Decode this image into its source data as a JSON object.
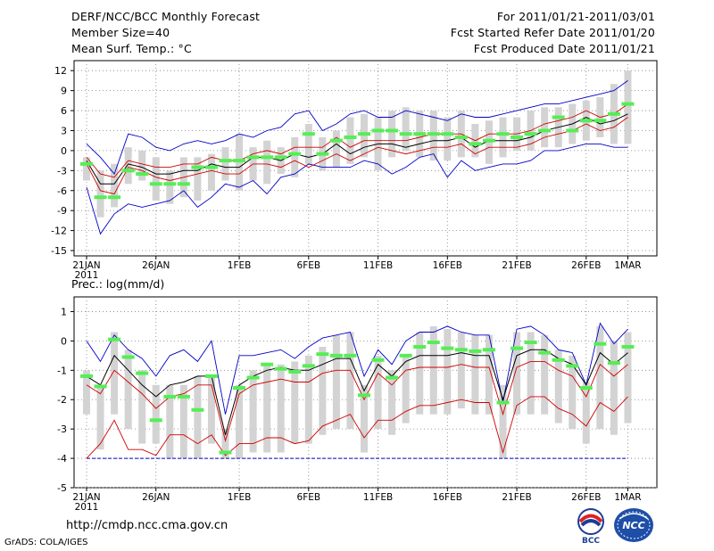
{
  "header": {
    "title": "DERF/NCC/BCC Monthly Forecast",
    "member_size": "Member Size=40",
    "variable": "Mean Surf. Temp.: °C",
    "period": "For 2011/01/21-2011/03/01",
    "fcst_started": "Fcst Started Refer Date 2011/01/20",
    "fcst_produced": "Fcst Produced Date 2011/01/21"
  },
  "footer": {
    "url": "http://cmdp.ncc.cma.gov.cn",
    "grads": "GrADS: COLA/IGES",
    "logo_bcc": "BCC",
    "logo_ncc": "NCC"
  },
  "colors": {
    "box": "#d3d3d3",
    "mean": "#000000",
    "inner_band": "#d00000",
    "outer_band": "#0000c8",
    "marker": "#55ee55",
    "grid": "#808080",
    "dashed_floor": "#0000c8"
  },
  "chart_data": [
    {
      "type": "line",
      "title": "Mean Surf. Temp.: °C",
      "x_ticks": [
        {
          "day": 0,
          "label": "21JAN",
          "sublabel": "2011"
        },
        {
          "day": 5,
          "label": "26JAN"
        },
        {
          "day": 11,
          "label": "1FEB"
        },
        {
          "day": 16,
          "label": "6FEB"
        },
        {
          "day": 21,
          "label": "11FEB"
        },
        {
          "day": 26,
          "label": "16FEB"
        },
        {
          "day": 31,
          "label": "21FEB"
        },
        {
          "day": 36,
          "label": "26FEB"
        },
        {
          "day": 39,
          "label": "1MAR"
        }
      ],
      "ylim": [
        -15.8,
        13.5
      ],
      "yticks": [
        -15,
        -12,
        -9,
        -6,
        -3,
        0,
        3,
        6,
        9,
        12
      ],
      "ytick_labels": [
        "-15",
        "-12",
        "-9",
        "-6",
        "-3",
        "0",
        "3",
        "6",
        "9",
        "12"
      ],
      "grid": true,
      "series": [
        {
          "name": "ensemble-box-max",
          "values": [
            -1,
            -3,
            -2,
            0.5,
            0,
            -1,
            -3,
            -1,
            -1,
            -0.5,
            0.5,
            2.5,
            0.5,
            1.5,
            0.5,
            2,
            4,
            2,
            3,
            5,
            5.5,
            5,
            6,
            6.5,
            6,
            6,
            5,
            6,
            4,
            4.5,
            5,
            5,
            6,
            6.5,
            6.5,
            7,
            7.5,
            8,
            10,
            12
          ]
        },
        {
          "name": "ensemble-box-min",
          "values": [
            -4.5,
            -10,
            -8.5,
            -5,
            -4.5,
            -7.5,
            -8,
            -7,
            -7.5,
            -6,
            -4.5,
            -6,
            -4.5,
            -5,
            -3.5,
            -4,
            -2,
            -3,
            -2.5,
            -2,
            -1,
            -3,
            -1,
            0,
            -1,
            -1.5,
            -1.5,
            -1,
            -1,
            -2,
            -1,
            0,
            0,
            0.5,
            0.5,
            1,
            1.5,
            2,
            1,
            1
          ]
        },
        {
          "name": "ensemble-mean",
          "values": [
            -1.5,
            -5,
            -5,
            -2,
            -2.5,
            -3.5,
            -3.5,
            -3,
            -3,
            -2,
            -2.5,
            -2.5,
            -1,
            -1,
            -1.5,
            -0.5,
            -1,
            -0.5,
            1,
            -0.5,
            0.5,
            1,
            1,
            0.5,
            1,
            1.5,
            1.5,
            2,
            0.5,
            1.5,
            1.5,
            1.5,
            2,
            3,
            3.5,
            4,
            5,
            4,
            4.5,
            5.5
          ]
        },
        {
          "name": "upper-inner",
          "values": [
            -1,
            -3.5,
            -4,
            -1.5,
            -2,
            -2.5,
            -2.5,
            -2,
            -2,
            -1,
            -1.5,
            -1.5,
            -0.5,
            0,
            -0.5,
            0.5,
            0.5,
            0.5,
            2,
            0.5,
            1.5,
            1.5,
            1.5,
            1.5,
            2,
            2.5,
            2.5,
            2.5,
            1.5,
            2.5,
            2.5,
            2.5,
            3,
            4,
            4.5,
            5,
            6,
            5,
            5.5,
            7
          ]
        },
        {
          "name": "lower-inner",
          "values": [
            -2,
            -6,
            -6.5,
            -2.5,
            -3,
            -4,
            -4.5,
            -4,
            -3.5,
            -3,
            -3.5,
            -3.5,
            -2,
            -2,
            -2.5,
            -1.5,
            -2.5,
            -1.5,
            -0.5,
            -1.5,
            -0.5,
            0.5,
            0,
            -0.5,
            0,
            0.5,
            0.5,
            1,
            -0.5,
            0.5,
            0.5,
            0.5,
            1,
            2,
            2.5,
            3,
            4,
            3,
            3.5,
            5
          ]
        },
        {
          "name": "upper-outer",
          "values": [
            1,
            -1,
            -3.5,
            2.5,
            2,
            0.5,
            0,
            1,
            1.5,
            1,
            1.5,
            2.5,
            2,
            3,
            3.5,
            5.5,
            6,
            3,
            4,
            5.5,
            6,
            5,
            5,
            6,
            5.5,
            5,
            4.5,
            5.5,
            5,
            5,
            5.5,
            6,
            6.5,
            7,
            7,
            7.5,
            8,
            8.5,
            9,
            10.5
          ]
        },
        {
          "name": "lower-outer",
          "values": [
            -5.5,
            -12.5,
            -9.5,
            -8,
            -8.5,
            -8,
            -7.5,
            -6,
            -8.5,
            -7,
            -5,
            -5.5,
            -4.5,
            -6.5,
            -4,
            -3.5,
            -2,
            -2.5,
            -2.5,
            -2.5,
            -1.5,
            -2,
            -3.5,
            -2.5,
            -1,
            -0.5,
            -4,
            -1.5,
            -3,
            -2.5,
            -2,
            -2,
            -1.5,
            0,
            0,
            0.5,
            1,
            1,
            0.5,
            0.5
          ]
        },
        {
          "name": "marker",
          "values": [
            -2,
            -7,
            -7,
            -3,
            -3.5,
            -5,
            -5,
            -5,
            -2.5,
            -2.5,
            -1.5,
            -1.5,
            -1,
            -1,
            -1,
            -0.5,
            2.5,
            -0.5,
            1.5,
            2,
            2.5,
            3,
            3,
            2.5,
            2.5,
            2.5,
            2.5,
            2,
            1,
            1.5,
            2.5,
            2,
            2.5,
            3,
            5,
            3,
            4.5,
            4.5,
            5.5,
            7
          ]
        }
      ]
    },
    {
      "type": "line",
      "title": "Prec.: log(mm/d)",
      "x_ticks": [
        {
          "day": 0,
          "label": "21JAN",
          "sublabel": "2011"
        },
        {
          "day": 5,
          "label": "26JAN"
        },
        {
          "day": 11,
          "label": "1FEB"
        },
        {
          "day": 16,
          "label": "6FEB"
        },
        {
          "day": 21,
          "label": "11FEB"
        },
        {
          "day": 26,
          "label": "16FEB"
        },
        {
          "day": 31,
          "label": "21FEB"
        },
        {
          "day": 36,
          "label": "26FEB"
        },
        {
          "day": 39,
          "label": "1MAR"
        }
      ],
      "ylim": [
        -5,
        1.5
      ],
      "yticks": [
        -5,
        -4,
        -3,
        -2,
        -1,
        0,
        1
      ],
      "ytick_labels": [
        "-5",
        "-4",
        "-3",
        "-2",
        "-1",
        "0",
        "1"
      ],
      "grid": true,
      "floor_value": -4,
      "series": [
        {
          "name": "ensemble-box-max",
          "values": [
            -1,
            -1.5,
            0.3,
            -0.3,
            -1,
            -1.5,
            -1.5,
            -1.5,
            -1.2,
            -1.2,
            -3,
            -1.5,
            -1,
            -0.8,
            -0.8,
            -0.7,
            -0.5,
            -0.2,
            0.2,
            0.3,
            -1.5,
            -0.5,
            -1,
            -0.5,
            0.3,
            0.5,
            0.4,
            0.3,
            0.2,
            0.2,
            -1.5,
            0.3,
            0.3,
            0.2,
            -0.3,
            -0.5,
            -1.4,
            0.5,
            0,
            0.3
          ]
        },
        {
          "name": "ensemble-box-min",
          "values": [
            -2.5,
            -3.7,
            -2.5,
            -3,
            -3.5,
            -3.5,
            -4,
            -4,
            -4,
            -3.5,
            -4,
            -4,
            -3.8,
            -3.8,
            -3.8,
            -3.5,
            -3.5,
            -3.2,
            -3,
            -3,
            -3.8,
            -3,
            -3.2,
            -2.8,
            -2.5,
            -2.5,
            -2.5,
            -2.3,
            -2.5,
            -2.5,
            -4,
            -2.5,
            -2.5,
            -2.5,
            -2.8,
            -3,
            -3.5,
            -3,
            -3.2,
            -2.8
          ]
        },
        {
          "name": "ensemble-mean",
          "values": [
            -1.2,
            -1.5,
            -0.5,
            -1,
            -1.5,
            -1.9,
            -1.5,
            -1.4,
            -1.2,
            -1.2,
            -3.2,
            -1.5,
            -1.2,
            -1,
            -0.9,
            -1,
            -1,
            -0.8,
            -0.6,
            -0.6,
            -1.7,
            -0.8,
            -1.2,
            -0.7,
            -0.5,
            -0.5,
            -0.5,
            -0.4,
            -0.5,
            -0.5,
            -2,
            -0.5,
            -0.3,
            -0.3,
            -0.6,
            -0.8,
            -1.5,
            -0.4,
            -0.8,
            -0.4
          ]
        },
        {
          "name": "upper-inner",
          "values": [
            -1.5,
            -1.8,
            -1,
            -1.4,
            -1.8,
            -2.3,
            -1.9,
            -1.8,
            -1.5,
            -1.5,
            -3.4,
            -1.8,
            -1.5,
            -1.4,
            -1.3,
            -1.4,
            -1.4,
            -1.1,
            -1,
            -1,
            -2,
            -1.1,
            -1.5,
            -1,
            -0.9,
            -0.9,
            -0.9,
            -0.8,
            -0.9,
            -0.9,
            -2.5,
            -0.9,
            -0.7,
            -0.7,
            -1,
            -1.2,
            -1.9,
            -0.8,
            -1.2,
            -0.8
          ]
        },
        {
          "name": "lower-inner",
          "values": [
            -4,
            -3.5,
            -2.7,
            -3.7,
            -3.7,
            -3.9,
            -3.2,
            -3.2,
            -3.5,
            -3.2,
            -3.9,
            -3.5,
            -3.5,
            -3.3,
            -3.3,
            -3.5,
            -3.4,
            -2.9,
            -2.7,
            -2.5,
            -3.3,
            -2.7,
            -2.7,
            -2.4,
            -2.2,
            -2.2,
            -2.1,
            -2,
            -2.1,
            -2.1,
            -3.8,
            -2.2,
            -1.9,
            -1.9,
            -2.3,
            -2.5,
            -2.9,
            -2.1,
            -2.4,
            -1.9
          ]
        },
        {
          "name": "upper-outer",
          "values": [
            0,
            -0.7,
            0.2,
            -0.3,
            -0.6,
            -1.2,
            -0.5,
            -0.3,
            -0.7,
            0,
            -2.5,
            -0.5,
            -0.5,
            -0.4,
            -0.3,
            -0.6,
            -0.2,
            0.1,
            0.2,
            0.3,
            -1.2,
            -0.3,
            -0.8,
            0,
            0.3,
            0.3,
            0.5,
            0.3,
            0.2,
            0.2,
            -2.1,
            0.4,
            0.5,
            0.2,
            -0.3,
            -0.4,
            -1.5,
            0.6,
            -0.1,
            0.4
          ]
        },
        {
          "name": "marker",
          "values": [
            -1.2,
            -1.55,
            0.05,
            -0.55,
            -1.1,
            -2.7,
            -1.9,
            -1.9,
            -2.35,
            -1.2,
            -3.8,
            -1.6,
            -1.25,
            -0.8,
            -0.95,
            -1.05,
            -0.85,
            -0.45,
            -0.5,
            -0.5,
            -1.85,
            -0.65,
            -1.25,
            -0.5,
            -0.2,
            -0.05,
            -0.25,
            -0.3,
            -0.35,
            -0.3,
            -2.1,
            -0.25,
            -0.05,
            -0.4,
            -0.65,
            -0.85,
            -1.6,
            -0.1,
            -0.75,
            -0.2
          ]
        }
      ]
    }
  ]
}
